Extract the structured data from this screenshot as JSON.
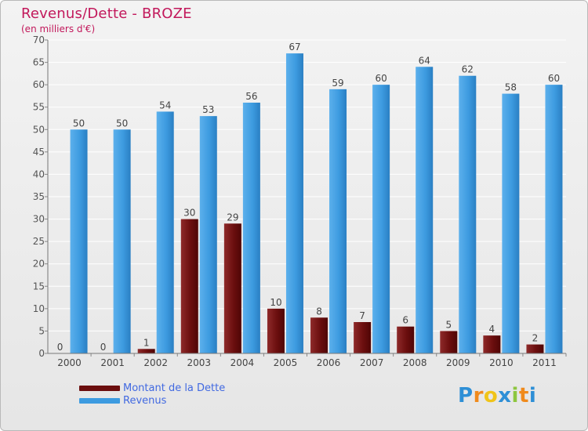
{
  "chart_data": {
    "type": "bar",
    "title": "Revenus/Dette - BROZE",
    "subtitle": "(en milliers d'€)",
    "categories": [
      "2000",
      "2001",
      "2002",
      "2003",
      "2004",
      "2005",
      "2006",
      "2007",
      "2008",
      "2009",
      "2010",
      "2011"
    ],
    "series": [
      {
        "name": "Montant de la Dette",
        "color": "#6b0e0e",
        "values": [
          0,
          0,
          1,
          30,
          29,
          10,
          8,
          7,
          6,
          5,
          4,
          2
        ]
      },
      {
        "name": "Revenus",
        "color": "#3d9be0",
        "values": [
          50,
          50,
          54,
          53,
          56,
          67,
          59,
          60,
          64,
          62,
          58,
          60
        ]
      }
    ],
    "ylim": [
      0,
      70
    ],
    "yticks": [
      0,
      5,
      10,
      15,
      20,
      25,
      30,
      35,
      40,
      45,
      50,
      55,
      60,
      65,
      70
    ],
    "grid": true,
    "legend_position": "bottom-left"
  },
  "logo": {
    "letters": [
      "P",
      "r",
      "o",
      "x",
      "i",
      "t",
      "i"
    ],
    "colors": [
      "#2e8fd6",
      "#f08a1c",
      "#f0c419",
      "#2e8fd6",
      "#8dc63f",
      "#f08a1c",
      "#2e8fd6"
    ]
  }
}
